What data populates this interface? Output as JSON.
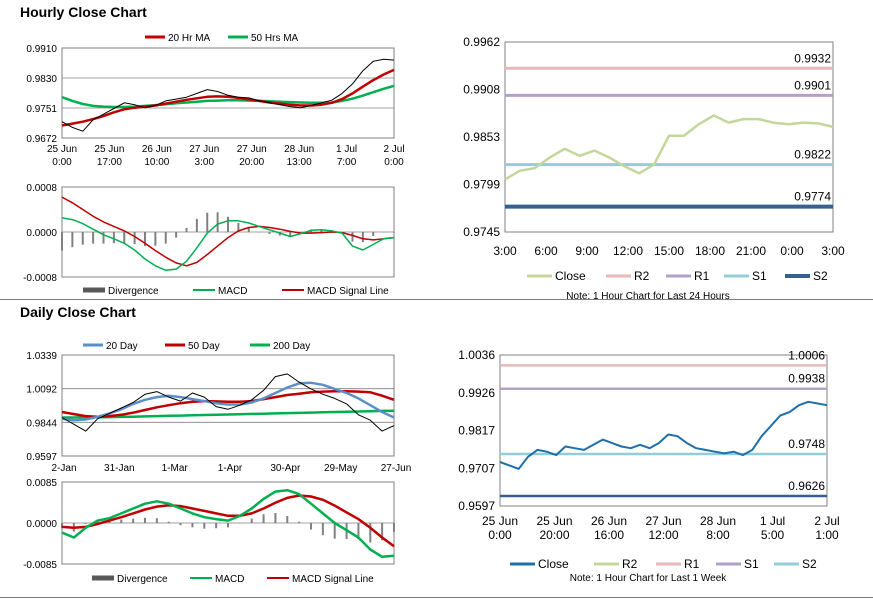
{
  "sections": {
    "hourly_title": "Hourly Close Chart",
    "daily_title": "Daily Close Chart"
  },
  "colors": {
    "ma_short": "#c00000",
    "ma_long": "#00b050",
    "divergence": "#808080",
    "close_light": "#c4d79b",
    "r2": "#e6b8b7",
    "r1": "#b1a0c7",
    "s1": "#92cddc",
    "s2": "#366092",
    "close_dark": "#1f6fa8",
    "ma_20d": "#5b8fc7"
  },
  "chart_data": [
    {
      "id": "hourly_price",
      "type": "line",
      "title": "Hourly Close Chart",
      "legend": [
        "20 Hr MA",
        "50 Hrs MA"
      ],
      "y_ticks": [
        "0.9910",
        "0.9830",
        "0.9751",
        "0.9672"
      ],
      "x_ticks": [
        [
          "25 Jun",
          "0:00"
        ],
        [
          "25 Jun",
          "17:00"
        ],
        [
          "26 Jun",
          "10:00"
        ],
        [
          "27 Jun",
          "3:00"
        ],
        [
          "27 Jun",
          "20:00"
        ],
        [
          "28 Jun",
          "13:00"
        ],
        [
          "1 Jul",
          "7:00"
        ],
        [
          "2 Jul",
          "0:00"
        ]
      ],
      "ylim": [
        0.9672,
        0.991
      ],
      "series": [
        {
          "name": "Close",
          "values": [
            0.9715,
            0.97,
            0.969,
            0.972,
            0.9735,
            0.975,
            0.9765,
            0.976,
            0.9752,
            0.9758,
            0.977,
            0.9775,
            0.978,
            0.979,
            0.98,
            0.9795,
            0.9785,
            0.978,
            0.9778,
            0.977,
            0.9765,
            0.976,
            0.9755,
            0.9752,
            0.9758,
            0.9765,
            0.9772,
            0.979,
            0.9815,
            0.985,
            0.9875,
            0.988,
            0.9878
          ]
        },
        {
          "name": "20 Hr MA",
          "values": [
            0.9705,
            0.971,
            0.9715,
            0.9722,
            0.973,
            0.974,
            0.9748,
            0.9752,
            0.9755,
            0.9758,
            0.9763,
            0.9768,
            0.9773,
            0.9777,
            0.9781,
            0.9782,
            0.9781,
            0.9778,
            0.9774,
            0.977,
            0.9766,
            0.9763,
            0.976,
            0.9758,
            0.9758,
            0.976,
            0.9765,
            0.9775,
            0.979,
            0.9808,
            0.9825,
            0.984,
            0.9852
          ]
        },
        {
          "name": "50 Hrs MA",
          "values": [
            0.978,
            0.977,
            0.9762,
            0.9757,
            0.9755,
            0.9754,
            0.9754,
            0.9755,
            0.9757,
            0.9759,
            0.9761,
            0.9764,
            0.9766,
            0.9768,
            0.977,
            0.9771,
            0.9772,
            0.9772,
            0.9771,
            0.977,
            0.9769,
            0.9768,
            0.9767,
            0.9766,
            0.9765,
            0.9765,
            0.9766,
            0.977,
            0.9776,
            0.9784,
            0.9793,
            0.9802,
            0.981
          ]
        }
      ]
    },
    {
      "id": "hourly_macd",
      "type": "line",
      "legend": [
        "Divergence",
        "MACD",
        "MACD Signal Line"
      ],
      "y_ticks": [
        "0.0008",
        "0.0000",
        "-0.0008"
      ],
      "ylim": [
        -0.0008,
        0.0008
      ],
      "series": [
        {
          "name": "MACD",
          "values": [
            0.00025,
            0.00022,
            0.00015,
            5e-05,
            -5e-05,
            -0.00012,
            -0.0002,
            -0.00032,
            -0.00048,
            -0.0006,
            -0.00068,
            -0.00066,
            -0.00052,
            -0.00028,
            -2e-05,
            0.00014,
            0.0002,
            0.0002,
            0.00016,
            0.0001,
            4e-05,
            -2e-05,
            -8e-05,
            -3e-05,
            3e-05,
            4e-05,
            2e-05,
            -2e-05,
            -0.00025,
            -0.00032,
            -0.00022,
            -0.00012,
            -0.0001
          ]
        },
        {
          "name": "MACD Signal Line",
          "values": [
            0.00062,
            0.00052,
            0.0004,
            0.00028,
            0.00018,
            0.0001,
            2e-05,
            -8e-05,
            -0.0002,
            -0.00033,
            -0.00045,
            -0.00055,
            -0.0006,
            -0.00054,
            -0.0004,
            -0.00025,
            -0.0001,
            2e-05,
            8e-05,
            0.0001,
            8e-05,
            5e-05,
            1e-05,
            -2e-05,
            -2e-05,
            -1e-05,
            0.0,
            -1e-05,
            -6e-05,
            -0.00012,
            -0.00014,
            -0.00012,
            -0.0001
          ]
        }
      ]
    },
    {
      "id": "hourly_levels",
      "type": "line",
      "legend": [
        "Close",
        "R2",
        "R1",
        "S1",
        "S2"
      ],
      "note": "Note: 1 Hour Chart for Last 24 Hours",
      "y_ticks": [
        "0.9962",
        "0.9908",
        "0.9853",
        "0.9799",
        "0.9745"
      ],
      "x_ticks": [
        "3:00",
        "6:00",
        "9:00",
        "12:00",
        "15:00",
        "18:00",
        "21:00",
        "0:00",
        "3:00"
      ],
      "ylim": [
        0.9745,
        0.9962
      ],
      "levels": [
        {
          "name": "R2",
          "value": 0.9932,
          "label": "0.9932"
        },
        {
          "name": "R1",
          "value": 0.9901,
          "label": "0.9901"
        },
        {
          "name": "S1",
          "value": 0.9822,
          "label": "0.9822"
        },
        {
          "name": "S2",
          "value": 0.9774,
          "label": "0.9774"
        }
      ],
      "series": [
        {
          "name": "Close",
          "values": [
            0.9805,
            0.9815,
            0.9818,
            0.983,
            0.984,
            0.9832,
            0.9838,
            0.983,
            0.982,
            0.9812,
            0.9822,
            0.9855,
            0.9855,
            0.9868,
            0.9878,
            0.987,
            0.9874,
            0.9874,
            0.987,
            0.9868,
            0.987,
            0.9869,
            0.9865
          ]
        }
      ]
    },
    {
      "id": "daily_price",
      "type": "line",
      "title": "Daily Close Chart",
      "legend": [
        "20 Day",
        "50 Day",
        "200 Day"
      ],
      "y_ticks": [
        "1.0339",
        "1.0092",
        "0.9844",
        "0.9597"
      ],
      "x_ticks": [
        "2-Jan",
        "31-Jan",
        "1-Mar",
        "1-Apr",
        "30-Apr",
        "29-May",
        "27-Jun"
      ],
      "ylim": [
        0.9597,
        1.0339
      ],
      "series": [
        {
          "name": "Close",
          "values": [
            0.988,
            0.983,
            0.978,
            0.987,
            0.991,
            0.995,
            0.999,
            1.005,
            1.007,
            1.003,
            1.0,
            1.006,
            1.003,
            0.996,
            0.994,
            0.997,
            1.001,
            1.008,
            1.018,
            1.02,
            1.014,
            1.009,
            1.005,
            1.002,
            0.998,
            0.99,
            0.986,
            0.978,
            0.982
          ]
        },
        {
          "name": "20 Day",
          "values": [
            0.987,
            0.986,
            0.9865,
            0.9885,
            0.991,
            0.994,
            0.998,
            1.001,
            1.003,
            1.004,
            1.003,
            1.0015,
            1.0,
            0.9985,
            0.9975,
            0.9975,
            0.999,
            1.002,
            1.006,
            1.01,
            1.013,
            1.0135,
            1.012,
            1.009,
            1.006,
            1.002,
            0.997,
            0.992,
            0.988
          ]
        },
        {
          "name": "50 Day",
          "values": [
            0.992,
            0.9905,
            0.989,
            0.9885,
            0.989,
            0.99,
            0.9915,
            0.9935,
            0.9955,
            0.997,
            0.9985,
            0.9995,
            1.0,
            0.9998,
            0.9995,
            0.9995,
            1.0,
            1.0015,
            1.003,
            1.0045,
            1.0055,
            1.0065,
            1.007,
            1.0072,
            1.0072,
            1.007,
            1.0065,
            1.004,
            1.001
          ]
        },
        {
          "name": "200 Day",
          "values": [
            0.988,
            0.988,
            0.9881,
            0.9882,
            0.9883,
            0.9884,
            0.9886,
            0.9888,
            0.989,
            0.9892,
            0.9894,
            0.9896,
            0.9898,
            0.99,
            0.9902,
            0.9904,
            0.9906,
            0.9908,
            0.991,
            0.9912,
            0.9914,
            0.9916,
            0.9918,
            0.992,
            0.9922,
            0.9924,
            0.9926,
            0.9928,
            0.993
          ]
        }
      ]
    },
    {
      "id": "daily_macd",
      "type": "line",
      "legend": [
        "Divergence",
        "MACD",
        "MACD Signal Line"
      ],
      "y_ticks": [
        "0.0085",
        "0.0000",
        "-0.0085"
      ],
      "ylim": [
        -0.0085,
        0.0085
      ],
      "series": [
        {
          "name": "MACD",
          "values": [
            -0.002,
            -0.003,
            -0.001,
            0.0005,
            0.001,
            0.002,
            0.003,
            0.004,
            0.0045,
            0.004,
            0.003,
            0.002,
            0.0012,
            0.0008,
            0.0005,
            0.0015,
            0.003,
            0.005,
            0.0065,
            0.0068,
            0.006,
            0.004,
            0.002,
            0.0,
            -0.0015,
            -0.003,
            -0.0055,
            -0.007,
            -0.0068
          ]
        },
        {
          "name": "MACD Signal Line",
          "values": [
            -0.0008,
            -0.001,
            -0.0008,
            -0.0002,
            0.0005,
            0.0012,
            0.002,
            0.0028,
            0.0034,
            0.0037,
            0.0035,
            0.003,
            0.0025,
            0.002,
            0.0015,
            0.0015,
            0.002,
            0.003,
            0.0042,
            0.0052,
            0.0057,
            0.0055,
            0.0048,
            0.0036,
            0.0022,
            0.0008,
            -0.001,
            -0.003,
            -0.0048
          ]
        }
      ]
    },
    {
      "id": "weekly_levels",
      "type": "line",
      "legend": [
        "Close",
        "R2",
        "R1",
        "S1",
        "S2"
      ],
      "note": "Note: 1 Hour Chart for Last 1 Week",
      "y_ticks": [
        "1.0036",
        "0.9926",
        "0.9817",
        "0.9707",
        "0.9597"
      ],
      "x_ticks": [
        [
          "25 Jun",
          "0:00"
        ],
        [
          "25 Jun",
          "20:00"
        ],
        [
          "26 Jun",
          "16:00"
        ],
        [
          "27 Jun",
          "12:00"
        ],
        [
          "28 Jun",
          "8:00"
        ],
        [
          "1 Jul",
          "5:00"
        ],
        [
          "2 Jul",
          "1:00"
        ]
      ],
      "ylim": [
        0.9597,
        1.0036
      ],
      "levels": [
        {
          "name": "R2",
          "value": 1.0006,
          "label": "1.0006"
        },
        {
          "name": "R1",
          "value": 0.9938,
          "label": "0.9938"
        },
        {
          "name": "S1",
          "value": 0.9748,
          "label": "0.9748"
        },
        {
          "name": "S2",
          "value": 0.9626,
          "label": "0.9626"
        }
      ],
      "series": [
        {
          "name": "Close",
          "values": [
            0.9725,
            0.9715,
            0.9705,
            0.974,
            0.976,
            0.9755,
            0.9745,
            0.977,
            0.9765,
            0.976,
            0.9775,
            0.979,
            0.978,
            0.977,
            0.9765,
            0.9775,
            0.9765,
            0.978,
            0.9805,
            0.98,
            0.978,
            0.9765,
            0.976,
            0.9755,
            0.975,
            0.9755,
            0.9745,
            0.976,
            0.98,
            0.983,
            0.986,
            0.987,
            0.989,
            0.99,
            0.9895,
            0.989
          ]
        }
      ]
    }
  ]
}
